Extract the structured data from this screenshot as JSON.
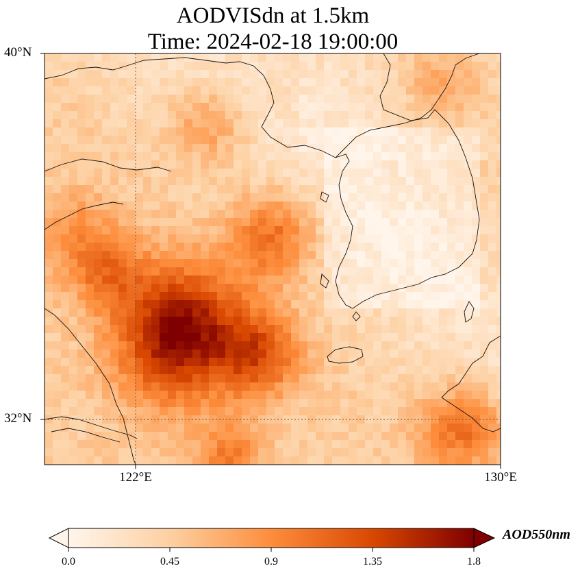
{
  "title_line1": "AODVISdn at 1.5km",
  "title_line2": "Time: 2024-02-18 19:00:00",
  "lat_labels": [
    "40°N",
    "32°N"
  ],
  "lon_labels": [
    "122°E",
    "130°E"
  ],
  "colorbar": {
    "label": "AOD550nm",
    "ticks": [
      "0.0",
      "0.45",
      "0.9",
      "1.35",
      "1.8"
    ],
    "colormap": [
      "#fff5eb",
      "#fdd0a2",
      "#fd8d3c",
      "#d94801",
      "#7f2704"
    ]
  },
  "map": {
    "extent_lon": [
      120,
      130
    ],
    "extent_lat": [
      31,
      40
    ],
    "gridlines_lon": [
      122
    ],
    "gridlines_lat": [
      32
    ]
  }
}
